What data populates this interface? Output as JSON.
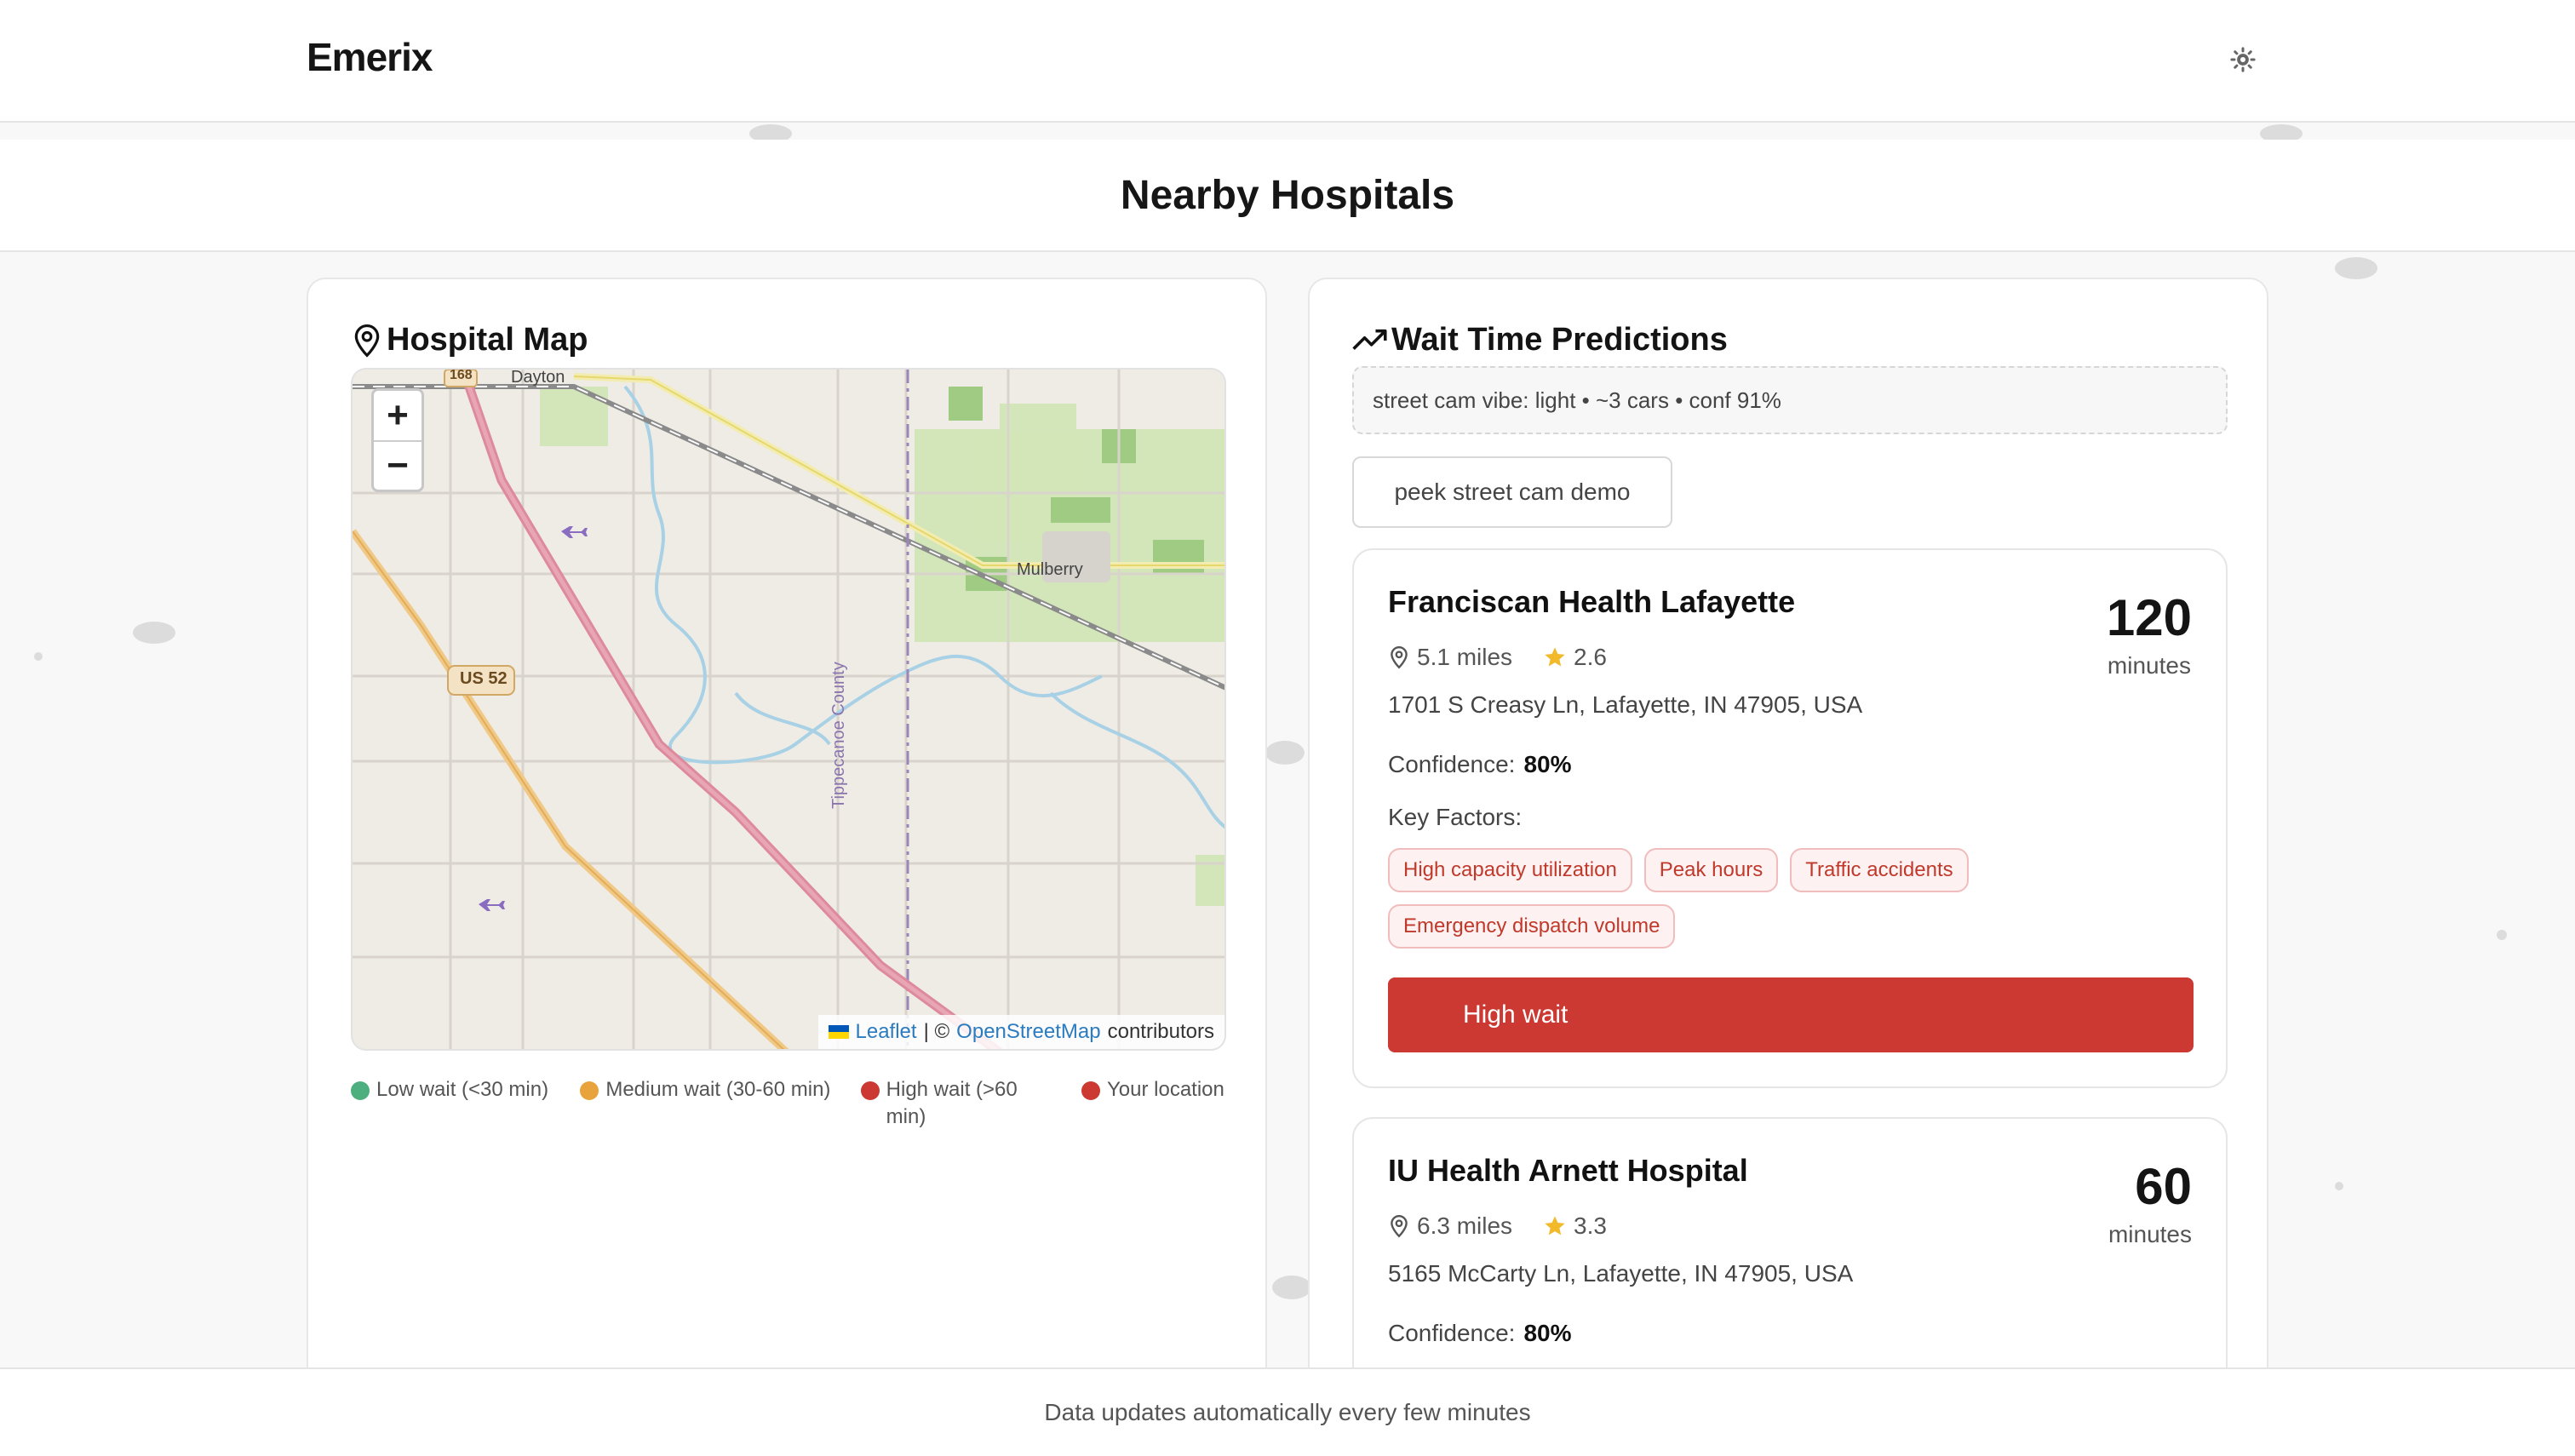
{
  "header": {
    "brand": "Emerix",
    "theme_icon": "gear-icon"
  },
  "page": {
    "title": "Nearby Hospitals"
  },
  "map_panel": {
    "title": "Hospital Map",
    "icon": "map-pin-icon",
    "zoom_in": "+",
    "zoom_out": "−",
    "places": {
      "town_1": "Dayton",
      "town_2": "Mulberry",
      "route": "US 52",
      "route_2": "168",
      "county": "Tippecanoe County"
    },
    "attribution": {
      "leaflet": "Leaflet",
      "separator": "| ©",
      "osm": "OpenStreetMap",
      "suffix": "contributors"
    },
    "legend": [
      {
        "label": "Low wait (<30 min)",
        "color": "#4caf7d"
      },
      {
        "label": "Medium wait (30-60 min)",
        "color": "#e8a33c"
      },
      {
        "label": "High wait (>60 min)",
        "color": "#cc3832"
      },
      {
        "label": "Your location",
        "color": "#cc3832"
      }
    ]
  },
  "predictions": {
    "title": "Wait Time Predictions",
    "icon": "trending-up-icon",
    "vibe": "street cam vibe: light • ~3 cars • conf 91%",
    "peek_button": "peek street cam demo",
    "hospitals": [
      {
        "name": "Franciscan Health Lafayette",
        "distance": "5.1 miles",
        "rating": "2.6",
        "address": "1701 S Creasy Ln, Lafayette, IN 47905, USA",
        "confidence_label": "Confidence:",
        "confidence": "80%",
        "factors_label": "Key Factors:",
        "factors": [
          "High capacity utilization",
          "Peak hours",
          "Traffic accidents",
          "Emergency dispatch volume"
        ],
        "wait": "120",
        "wait_unit": "minutes",
        "status": "High wait"
      },
      {
        "name": "IU Health Arnett Hospital",
        "distance": "6.3 miles",
        "rating": "3.3",
        "address": "5165 McCarty Ln, Lafayette, IN 47905, USA",
        "confidence_label": "Confidence:",
        "confidence": "80%",
        "wait": "60",
        "wait_unit": "minutes"
      }
    ]
  },
  "footer": {
    "text": "Data updates automatically every few minutes"
  }
}
